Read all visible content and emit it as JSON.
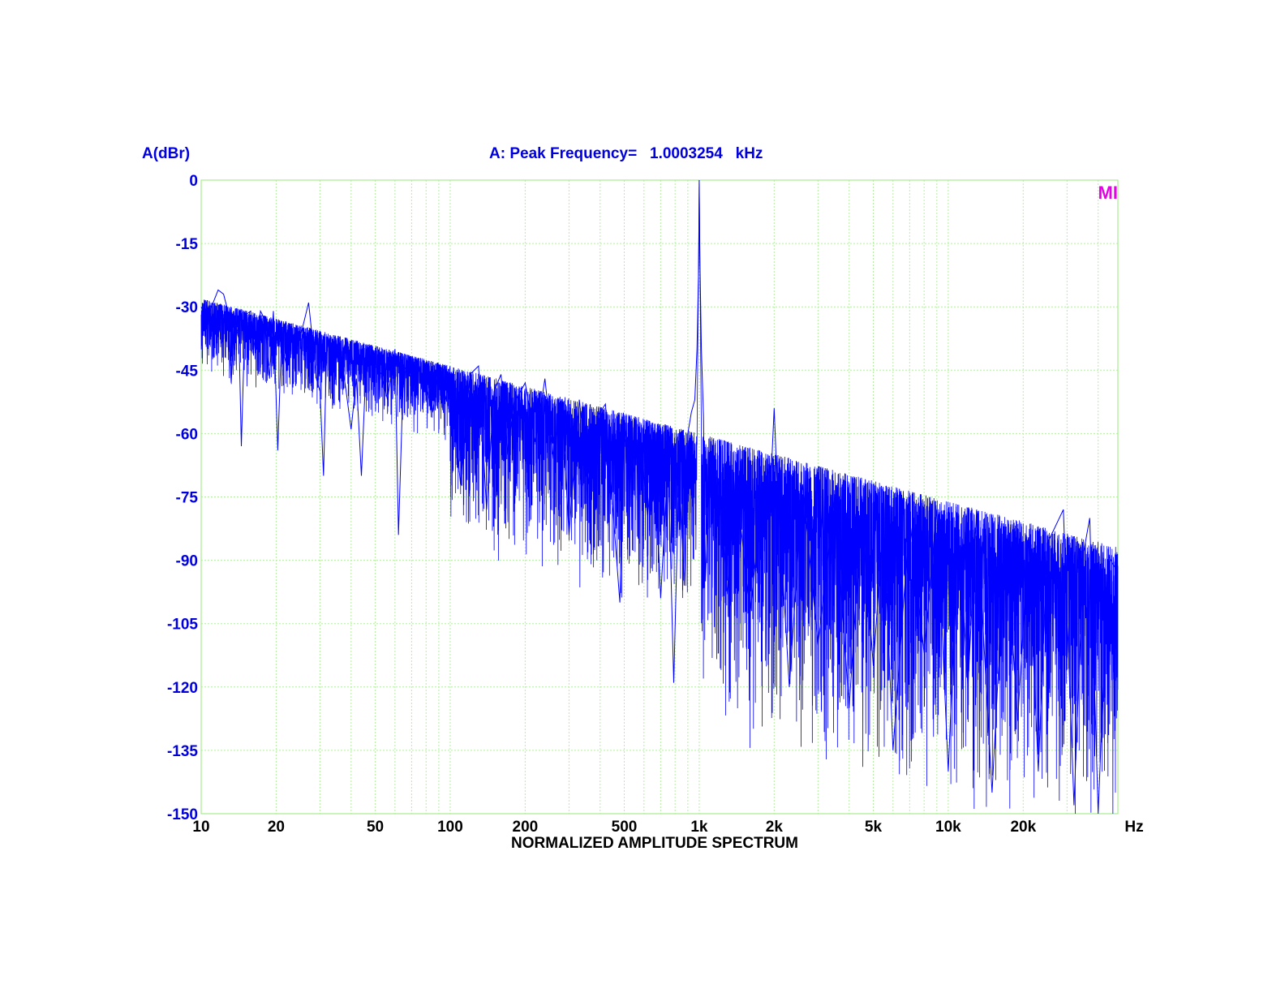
{
  "chart_data": {
    "type": "line",
    "title": "A: Peak Frequency=   1.0003254   kHz",
    "xlabel": "NORMALIZED AMPLITUDE SPECTRUM",
    "ylabel": "A(dBr)",
    "x_unit": "Hz",
    "x_scale": "log",
    "xlim": [
      10,
      48000
    ],
    "ylim": [
      -150,
      0
    ],
    "grid": true,
    "corner_mark": "MI",
    "y_ticks": [
      0,
      -15,
      -30,
      -45,
      -60,
      -75,
      -90,
      -105,
      -120,
      -135,
      -150
    ],
    "x_ticks": [
      {
        "value": 10,
        "label": "10"
      },
      {
        "value": 20,
        "label": "20"
      },
      {
        "value": 50,
        "label": "50"
      },
      {
        "value": 100,
        "label": "100"
      },
      {
        "value": 200,
        "label": "200"
      },
      {
        "value": 500,
        "label": "500"
      },
      {
        "value": 1000,
        "label": "1k"
      },
      {
        "value": 2000,
        "label": "2k"
      },
      {
        "value": 5000,
        "label": "5k"
      },
      {
        "value": 10000,
        "label": "10k"
      },
      {
        "value": 20000,
        "label": "20k"
      }
    ],
    "series": [
      {
        "color": "#0000ff",
        "points": [
          [
            10,
            -30
          ],
          [
            10.5,
            -33
          ],
          [
            11,
            -30
          ],
          [
            11.7,
            -26
          ],
          [
            12.3,
            -27
          ],
          [
            12.8,
            -31
          ],
          [
            13.2,
            -48
          ],
          [
            13.6,
            -33
          ],
          [
            14.2,
            -38
          ],
          [
            14.5,
            -63
          ],
          [
            15,
            -32
          ],
          [
            15.8,
            -31
          ],
          [
            16.5,
            -41
          ],
          [
            17.3,
            -31
          ],
          [
            18,
            -33
          ],
          [
            18.8,
            -47
          ],
          [
            19.5,
            -31
          ],
          [
            20.3,
            -64
          ],
          [
            21,
            -38
          ],
          [
            22,
            -44
          ],
          [
            23,
            -36
          ],
          [
            24,
            -40
          ],
          [
            25,
            -37
          ],
          [
            26,
            -33
          ],
          [
            27,
            -29
          ],
          [
            28,
            -38
          ],
          [
            29,
            -47
          ],
          [
            30,
            -50
          ],
          [
            31,
            -70
          ],
          [
            32,
            -37
          ],
          [
            34,
            -44
          ],
          [
            36,
            -40
          ],
          [
            38,
            -49
          ],
          [
            40,
            -59
          ],
          [
            42,
            -47
          ],
          [
            44,
            -70
          ],
          [
            46,
            -43
          ],
          [
            48,
            -39
          ],
          [
            50,
            -44
          ],
          [
            53,
            -46
          ],
          [
            56,
            -52
          ],
          [
            60,
            -40
          ],
          [
            62,
            -84
          ],
          [
            65,
            -44
          ],
          [
            70,
            -47
          ],
          [
            75,
            -45
          ],
          [
            80,
            -49
          ],
          [
            85,
            -55
          ],
          [
            90,
            -45
          ],
          [
            95,
            -53
          ],
          [
            100,
            -47
          ],
          [
            110,
            -72
          ],
          [
            120,
            -46
          ],
          [
            130,
            -44
          ],
          [
            140,
            -78
          ],
          [
            150,
            -50
          ],
          [
            160,
            -46
          ],
          [
            170,
            -65
          ],
          [
            180,
            -53
          ],
          [
            200,
            -48
          ],
          [
            220,
            -62
          ],
          [
            240,
            -47
          ],
          [
            260,
            -66
          ],
          [
            280,
            -52
          ],
          [
            300,
            -84
          ],
          [
            330,
            -52
          ],
          [
            360,
            -72
          ],
          [
            390,
            -56
          ],
          [
            420,
            -53
          ],
          [
            450,
            -78
          ],
          [
            480,
            -100
          ],
          [
            500,
            -58
          ],
          [
            540,
            -70
          ],
          [
            580,
            -60
          ],
          [
            620,
            -80
          ],
          [
            660,
            -62
          ],
          [
            700,
            -99
          ],
          [
            750,
            -66
          ],
          [
            790,
            -119
          ],
          [
            830,
            -68
          ],
          [
            870,
            -96
          ],
          [
            900,
            -60
          ],
          [
            930,
            -55
          ],
          [
            960,
            -52
          ],
          [
            980,
            -40
          ],
          [
            995,
            -20
          ],
          [
            1000,
            0
          ],
          [
            1006,
            -18
          ],
          [
            1020,
            -40
          ],
          [
            1040,
            -56
          ],
          [
            1060,
            -95
          ],
          [
            1100,
            -66
          ],
          [
            1200,
            -72
          ],
          [
            1300,
            -98
          ],
          [
            1400,
            -70
          ],
          [
            1600,
            -103
          ],
          [
            1800,
            -72
          ],
          [
            1950,
            -68
          ],
          [
            2000,
            -54
          ],
          [
            2050,
            -70
          ],
          [
            2300,
            -120
          ],
          [
            2600,
            -72
          ],
          [
            3000,
            -110
          ],
          [
            3500,
            -75
          ],
          [
            4000,
            -125
          ],
          [
            4500,
            -78
          ],
          [
            5000,
            -115
          ],
          [
            5500,
            -80
          ],
          [
            6000,
            -135
          ],
          [
            7000,
            -80
          ],
          [
            8000,
            -112
          ],
          [
            9000,
            -78
          ],
          [
            10000,
            -140
          ],
          [
            11000,
            -82
          ],
          [
            12000,
            -120
          ],
          [
            13000,
            -78
          ],
          [
            15000,
            -145
          ],
          [
            17000,
            -83
          ],
          [
            19000,
            -128
          ],
          [
            21000,
            -85
          ],
          [
            23000,
            -140
          ],
          [
            25000,
            -86
          ],
          [
            29000,
            -78
          ],
          [
            32000,
            -148
          ],
          [
            35000,
            -88
          ],
          [
            37000,
            -80
          ],
          [
            40000,
            -150
          ],
          [
            44000,
            -89
          ],
          [
            48000,
            -93
          ]
        ]
      }
    ]
  }
}
